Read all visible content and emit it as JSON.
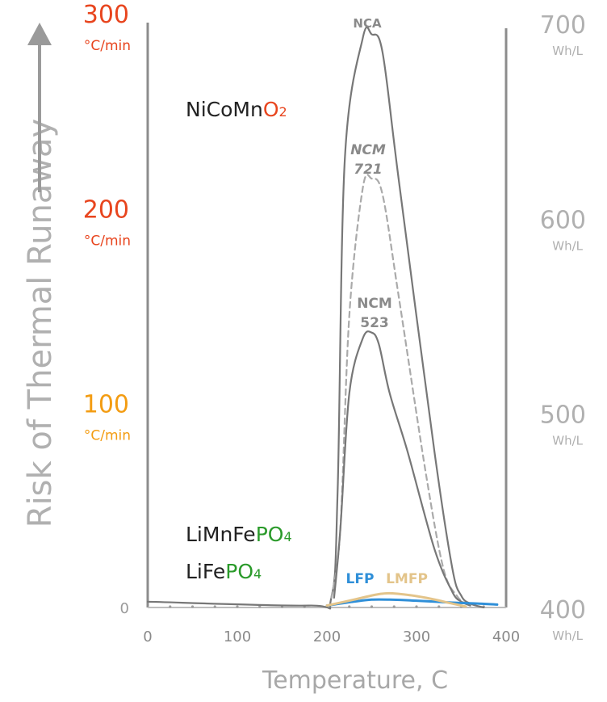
{
  "chart_data": {
    "type": "line",
    "x_axis": {
      "label": "Temperature, C",
      "range": [
        0,
        400
      ],
      "ticks": [
        "0",
        "100",
        "200",
        "300",
        "400"
      ]
    },
    "left_axis": {
      "label": "Risk of Thermal Runaway",
      "range": [
        0,
        300
      ],
      "ticks": [
        {
          "value": 0,
          "label": "0",
          "unit": "",
          "color": "#9a9a9a"
        },
        {
          "value": 100,
          "label": "100",
          "unit": "°C/min",
          "color": "#f39c12"
        },
        {
          "value": 200,
          "label": "200",
          "unit": "°C/min",
          "color": "#e8451e"
        },
        {
          "value": 300,
          "label": "300",
          "unit": "°C/min",
          "color": "#e8451e"
        }
      ]
    },
    "right_axis": {
      "range": [
        400,
        700
      ],
      "ticks": [
        {
          "value": 400,
          "label": "400",
          "unit": "Wh/L"
        },
        {
          "value": 500,
          "label": "500",
          "unit": "Wh/L"
        },
        {
          "value": 600,
          "label": "600",
          "unit": "Wh/L"
        },
        {
          "value": 700,
          "label": "700",
          "unit": "Wh/L"
        }
      ]
    },
    "chemistry_labels": [
      {
        "base": "NiCoMn",
        "suffix": "O",
        "subscript": "2",
        "color": "#e8451e"
      },
      {
        "base": "LiMnFe",
        "suffix": "PO",
        "subscript": "4",
        "color": "#2a9a2a"
      },
      {
        "base": "LiFe",
        "suffix": "PO",
        "subscript": "4",
        "color": "#2a9a2a"
      }
    ],
    "series": [
      {
        "name": "NCA",
        "color": "#777777",
        "dashed": false,
        "x": [
          0,
          180,
          205,
          212,
          220,
          240,
          250,
          262,
          280,
          320,
          340,
          350,
          360,
          375
        ],
        "y": [
          3,
          1,
          5,
          60,
          230,
          292,
          294,
          285,
          220,
          80,
          20,
          6,
          2,
          0
        ]
      },
      {
        "name": "NCM 721",
        "line1": "NCM",
        "line2": "721",
        "color": "#aaaaaa",
        "dashed": true,
        "x": [
          205,
          215,
          225,
          240,
          250,
          262,
          280,
          310,
          330,
          345,
          355
        ],
        "y": [
          5,
          40,
          150,
          215,
          220,
          212,
          160,
          70,
          20,
          6,
          2
        ]
      },
      {
        "name": "NCM 523",
        "line1": "NCM",
        "line2": "523",
        "color": "#777777",
        "dashed": false,
        "x": [
          208,
          215,
          225,
          240,
          250,
          258,
          270,
          290,
          320,
          340,
          350,
          360
        ],
        "y": [
          5,
          40,
          110,
          138,
          141,
          135,
          110,
          80,
          30,
          8,
          3,
          1
        ]
      },
      {
        "name": "LFP",
        "color": "#2f8fd8",
        "dashed": false,
        "x": [
          200,
          230,
          250,
          270,
          300,
          340,
          370,
          390
        ],
        "y": [
          1,
          3,
          4,
          4,
          3.5,
          2.5,
          2,
          1.5
        ]
      },
      {
        "name": "LMFP",
        "color": "#e3c48a",
        "dashed": false,
        "x": [
          200,
          230,
          260,
          280,
          310,
          340,
          355
        ],
        "y": [
          1,
          4,
          7,
          7,
          5,
          2,
          0.5
        ]
      }
    ]
  }
}
